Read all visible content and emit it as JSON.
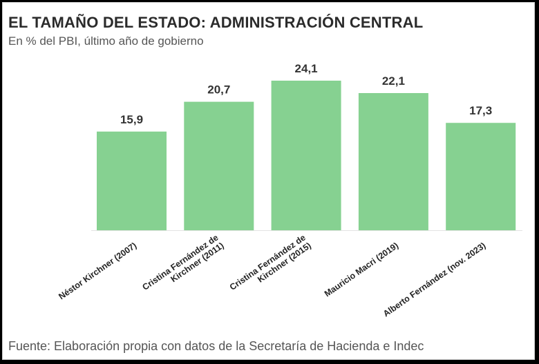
{
  "title": "EL TAMAÑO DEL ESTADO: ADMINISTRACIÓN CENTRAL",
  "subtitle": "En % del PBI, último año de gobierno",
  "source": "Fuente: Elaboración propia con datos de la Secretaría de Hacienda e Indec",
  "colors": {
    "bar": "#86d191",
    "background": "#ffffff",
    "axis": "#e0e0e0"
  },
  "chart_data": {
    "type": "bar",
    "title": "EL TAMAÑO DEL ESTADO: ADMINISTRACIÓN CENTRAL",
    "subtitle": "En % del PBI, último año de gobierno",
    "xlabel": "",
    "ylabel": "",
    "categories": [
      [
        "Néstor Kirchner (2007)"
      ],
      [
        "Cristina Fernández de",
        "Kirchner (2011)"
      ],
      [
        "Cristina Fernández de",
        "Kirchner (2015)"
      ],
      [
        "Mauricio Macri (2019)"
      ],
      [
        "Alberto Fernández (nov. 2023)"
      ]
    ],
    "values": [
      15.9,
      20.7,
      24.1,
      22.1,
      17.3
    ],
    "value_labels": [
      "15,9",
      "20,7",
      "24,1",
      "22,1",
      "17,3"
    ],
    "ylim": [
      0,
      24.1
    ],
    "grid": false,
    "legend": "none"
  }
}
